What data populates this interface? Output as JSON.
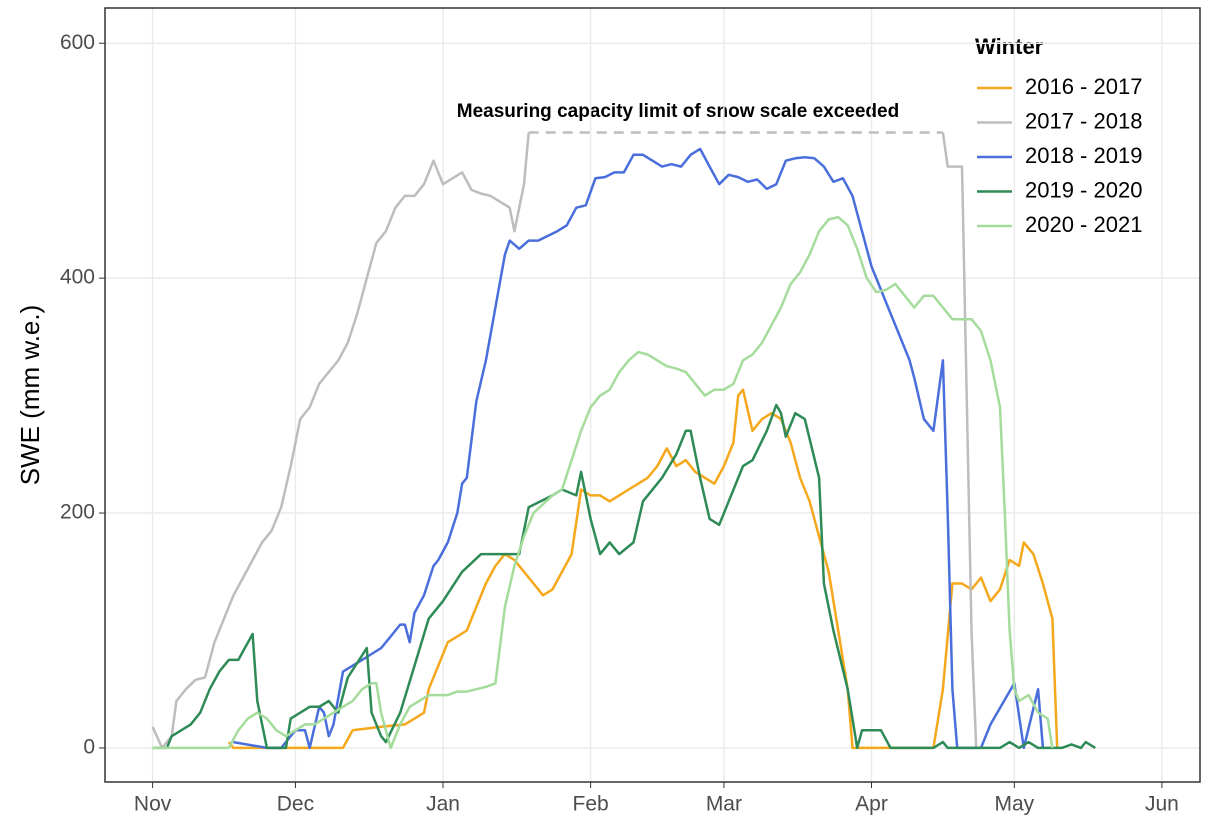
{
  "chart_data": {
    "type": "line",
    "ylabel": "SWE (mm w.e.)",
    "legend_title": "Winter",
    "legend_position": "top-right",
    "grid": true,
    "xlim": [
      -10,
      220
    ],
    "xticks": [
      {
        "value": 0,
        "label": "Nov"
      },
      {
        "value": 30,
        "label": "Dec"
      },
      {
        "value": 61,
        "label": "Jan"
      },
      {
        "value": 92,
        "label": "Feb"
      },
      {
        "value": 120,
        "label": "Mar"
      },
      {
        "value": 151,
        "label": "Apr"
      },
      {
        "value": 181,
        "label": "May"
      },
      {
        "value": 212,
        "label": "Jun"
      }
    ],
    "ylim": [
      -29,
      630
    ],
    "yticks": [
      0,
      200,
      400,
      600
    ],
    "annotation": {
      "text": "Measuring capacity limit of snow scale exceeded",
      "x": [
        79,
        166
      ],
      "y": 524
    },
    "series": [
      {
        "name": "2016 - 2017",
        "color": "#f5a81c",
        "x": [
          16,
          17,
          40,
          42,
          48,
          53,
          55,
          57,
          58,
          60,
          62,
          64,
          66,
          68,
          70,
          72,
          74,
          76,
          78,
          80,
          82,
          84,
          86,
          88,
          90,
          92,
          94,
          96,
          98,
          100,
          102,
          104,
          106,
          108,
          110,
          112,
          114,
          116,
          118,
          120,
          122,
          123,
          124,
          126,
          128,
          130,
          132,
          134,
          136,
          138,
          140,
          142,
          144,
          146,
          147,
          164,
          166,
          168,
          170,
          172,
          174,
          176,
          178,
          180,
          182,
          183,
          185,
          187,
          189,
          190
        ],
        "values": [
          5,
          0,
          0,
          15,
          18,
          20,
          25,
          30,
          50,
          70,
          90,
          95,
          100,
          120,
          140,
          155,
          165,
          160,
          150,
          140,
          130,
          135,
          150,
          165,
          220,
          215,
          215,
          210,
          215,
          220,
          225,
          230,
          240,
          255,
          240,
          245,
          235,
          230,
          225,
          240,
          260,
          300,
          305,
          270,
          280,
          285,
          280,
          260,
          230,
          210,
          180,
          150,
          100,
          50,
          0,
          0,
          50,
          140,
          140,
          135,
          145,
          125,
          135,
          160,
          155,
          175,
          165,
          140,
          110,
          0
        ]
      },
      {
        "name": "2017 - 2018",
        "color": "#bdbdbd",
        "x": [
          0,
          2,
          4,
          5,
          7,
          9,
          11,
          13,
          15,
          17,
          19,
          21,
          23,
          25,
          27,
          29,
          31,
          33,
          35,
          37,
          39,
          41,
          43,
          45,
          47,
          49,
          51,
          53,
          55,
          57,
          59,
          61,
          63,
          65,
          67,
          69,
          71,
          73,
          75,
          76,
          78,
          79,
          100,
          166,
          167,
          170,
          171,
          172,
          173
        ],
        "values": [
          18,
          0,
          10,
          40,
          50,
          58,
          60,
          90,
          110,
          130,
          145,
          160,
          175,
          185,
          205,
          240,
          280,
          290,
          310,
          320,
          330,
          345,
          370,
          400,
          430,
          440,
          460,
          470,
          470,
          480,
          500,
          480,
          485,
          490,
          475,
          472,
          470,
          465,
          460,
          440,
          480,
          524,
          null,
          524,
          495,
          495,
          300,
          100,
          0
        ]
      },
      {
        "name": "2018 - 2019",
        "color": "#4a6fdc",
        "x": [
          17,
          24,
          27,
          30,
          32,
          33,
          35,
          36,
          37,
          38,
          40,
          42,
          44,
          46,
          48,
          50,
          52,
          53,
          54,
          55,
          57,
          59,
          60,
          62,
          64,
          65,
          66,
          68,
          70,
          72,
          74,
          75,
          77,
          79,
          81,
          83,
          85,
          87,
          89,
          91,
          93,
          95,
          97,
          99,
          101,
          103,
          105,
          107,
          109,
          111,
          113,
          115,
          117,
          119,
          121,
          123,
          125,
          127,
          129,
          131,
          133,
          135,
          137,
          139,
          141,
          143,
          145,
          147,
          149,
          151,
          153,
          155,
          157,
          159,
          160,
          162,
          164,
          166,
          167,
          168,
          169,
          174,
          176,
          181,
          183,
          186,
          187
        ],
        "values": [
          5,
          0,
          0,
          15,
          15,
          0,
          35,
          30,
          10,
          20,
          65,
          70,
          75,
          80,
          85,
          95,
          105,
          105,
          90,
          115,
          130,
          155,
          160,
          175,
          200,
          225,
          230,
          295,
          330,
          375,
          420,
          432,
          425,
          432,
          432,
          436,
          440,
          445,
          460,
          462,
          485,
          486,
          490,
          490,
          505,
          505,
          500,
          495,
          497,
          495,
          505,
          510,
          495,
          480,
          488,
          486,
          482,
          484,
          476,
          480,
          500,
          502,
          503,
          502,
          495,
          482,
          485,
          470,
          440,
          410,
          390,
          370,
          350,
          330,
          315,
          280,
          270,
          330,
          200,
          50,
          0,
          0,
          20,
          55,
          0,
          50,
          0
        ]
      },
      {
        "name": "2019 - 2020",
        "color": "#2e8b57",
        "x": [
          0,
          3,
          4,
          6,
          8,
          10,
          12,
          14,
          16,
          18,
          21,
          22,
          24,
          28,
          29,
          31,
          33,
          35,
          37,
          39,
          41,
          45,
          46,
          48,
          49,
          52,
          55,
          58,
          61,
          65,
          69,
          77,
          79,
          84,
          86,
          89,
          90,
          92,
          94,
          96,
          98,
          101,
          103,
          107,
          110,
          112,
          113,
          115,
          117,
          119,
          124,
          126,
          129,
          131,
          132,
          133,
          135,
          137,
          140,
          141,
          143,
          146,
          148,
          149,
          153,
          155,
          164,
          166,
          167,
          178,
          180,
          182,
          184,
          186,
          191,
          193,
          195,
          196,
          198
        ],
        "values": [
          0,
          0,
          10,
          15,
          20,
          30,
          50,
          65,
          75,
          75,
          97,
          40,
          0,
          0,
          25,
          30,
          35,
          35,
          40,
          30,
          60,
          85,
          30,
          10,
          5,
          30,
          70,
          110,
          125,
          150,
          165,
          165,
          205,
          215,
          220,
          215,
          235,
          195,
          165,
          175,
          165,
          175,
          210,
          230,
          250,
          270,
          270,
          230,
          195,
          190,
          240,
          245,
          270,
          292,
          285,
          265,
          285,
          280,
          230,
          140,
          100,
          50,
          0,
          15,
          15,
          0,
          0,
          5,
          0,
          0,
          5,
          0,
          5,
          0,
          0,
          3,
          0,
          5,
          0
        ]
      },
      {
        "name": "2020 - 2021",
        "color": "#a5dc9c",
        "x": [
          0,
          16,
          18,
          20,
          22,
          24,
          26,
          28,
          30,
          32,
          34,
          36,
          38,
          40,
          42,
          44,
          46,
          47,
          48,
          50,
          52,
          54,
          56,
          58,
          60,
          62,
          64,
          66,
          68,
          70,
          72,
          74,
          76,
          78,
          80,
          84,
          86,
          88,
          90,
          92,
          94,
          96,
          98,
          100,
          102,
          104,
          106,
          108,
          110,
          112,
          114,
          116,
          118,
          120,
          122,
          124,
          126,
          128,
          130,
          132,
          134,
          136,
          138,
          140,
          142,
          144,
          146,
          148,
          150,
          152,
          154,
          156,
          158,
          160,
          162,
          164,
          166,
          168,
          170,
          172,
          174,
          176,
          178,
          179,
          180,
          181,
          182,
          184,
          186,
          188,
          189
        ],
        "values": [
          0,
          0,
          15,
          25,
          30,
          25,
          15,
          10,
          15,
          20,
          20,
          25,
          30,
          35,
          40,
          50,
          55,
          55,
          30,
          0,
          20,
          35,
          40,
          45,
          45,
          45,
          48,
          48,
          50,
          52,
          55,
          120,
          155,
          180,
          200,
          215,
          220,
          245,
          270,
          290,
          300,
          305,
          320,
          330,
          337,
          335,
          330,
          325,
          323,
          320,
          310,
          300,
          305,
          305,
          310,
          330,
          335,
          345,
          360,
          375,
          395,
          405,
          420,
          440,
          450,
          452,
          445,
          425,
          400,
          388,
          390,
          395,
          385,
          375,
          385,
          385,
          375,
          365,
          365,
          365,
          355,
          330,
          290,
          200,
          100,
          50,
          40,
          45,
          30,
          25,
          0
        ]
      }
    ]
  }
}
